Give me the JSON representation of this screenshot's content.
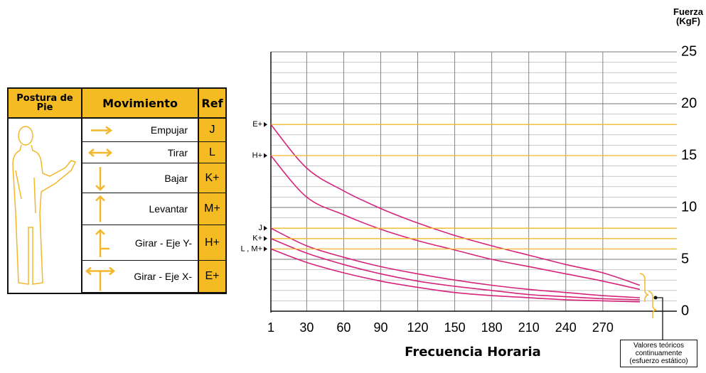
{
  "table": {
    "header": [
      "Postura de Pie",
      "Movimiento",
      "Ref"
    ],
    "rows": [
      {
        "movement": "Empujar",
        "ref": "J"
      },
      {
        "movement": "Tirar",
        "ref": "L"
      },
      {
        "movement": "Bajar",
        "ref": "K+"
      },
      {
        "movement": "Levantar",
        "ref": "M+"
      },
      {
        "movement": "Girar - Eje Y-",
        "ref": "H+"
      },
      {
        "movement": "Girar - Eje X-",
        "ref": "E+"
      }
    ]
  },
  "chart_data": {
    "type": "line",
    "ylabel": "Fuerza (KgF)",
    "xlabel": "Frecuencia Horaria",
    "annotation": "Valores teóricos continuamente (esfuerzo estático)",
    "x": [
      1,
      30,
      60,
      90,
      120,
      150,
      180,
      210,
      240,
      270,
      300
    ],
    "series": [
      {
        "name": "E+",
        "color": "#d6247a",
        "ref_color": "#f2b82a",
        "values": [
          18,
          13.8,
          11.6,
          9.9,
          8.5,
          7.3,
          6.3,
          5.4,
          4.5,
          3.7,
          2.5
        ]
      },
      {
        "name": "H+",
        "color": "#d6247a",
        "ref_color": "#f2b82a",
        "values": [
          15,
          11,
          9.3,
          7.9,
          6.8,
          5.9,
          5.0,
          4.3,
          3.6,
          2.9,
          2.1
        ]
      },
      {
        "name": "J",
        "color": "#d6247a",
        "ref_color": "#f2b82a",
        "values": [
          8,
          6.3,
          5.2,
          4.3,
          3.6,
          3.0,
          2.5,
          2.1,
          1.8,
          1.5,
          1.3
        ]
      },
      {
        "name": "K+",
        "color": "#d6247a",
        "ref_color": "#f2b82a",
        "values": [
          7,
          5.6,
          4.5,
          3.6,
          2.9,
          2.4,
          2.0,
          1.6,
          1.4,
          1.2,
          1.1
        ]
      },
      {
        "name": "L , M+",
        "color": "#d6247a",
        "ref_color": "#f2b82a",
        "values": [
          6,
          4.7,
          3.7,
          2.9,
          2.3,
          1.8,
          1.5,
          1.3,
          1.1,
          1.0,
          0.9
        ]
      }
    ],
    "xlim": [
      1,
      330
    ],
    "xticks": [
      1,
      30,
      60,
      90,
      120,
      150,
      180,
      210,
      240,
      270
    ],
    "ylim": [
      0,
      25
    ],
    "yticks": [
      0,
      5,
      10,
      15,
      20,
      25
    ],
    "yminor_ticks": [
      1,
      2,
      3,
      4,
      6,
      7,
      8,
      9,
      11,
      12,
      13,
      14,
      16,
      17,
      18,
      19,
      21,
      22,
      23,
      24
    ],
    "grid": true
  }
}
